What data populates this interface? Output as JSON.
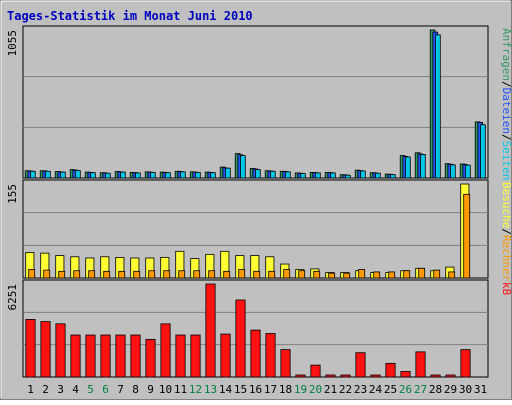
{
  "title": "Tages-Statistik im Monat Juni 2010",
  "colors": {
    "anfragen": "#339966",
    "dateien": "#2255ff",
    "seiten": "#00c8e8",
    "besuche": "#ffff33",
    "rechner": "#ff9900",
    "kb": "#ff1111",
    "weekend_label": "#008040",
    "weekday_label": "#000000",
    "plot_bg": "#c0c0c0",
    "frame_title": "#0000c0"
  },
  "legend_top": [
    {
      "text": "Anfragen",
      "color": "#339966"
    },
    {
      "text": "/",
      "color": "#000000"
    },
    {
      "text": "Dateien",
      "color": "#2255ff"
    },
    {
      "text": "/",
      "color": "#000000"
    },
    {
      "text": "Seiten",
      "color": "#00c8e8"
    }
  ],
  "legend_mid": [
    {
      "text": "Besuche",
      "color": "#ffff33"
    },
    {
      "text": "/",
      "color": "#000000"
    },
    {
      "text": "Rechner",
      "color": "#ff9900"
    }
  ],
  "legend_bot": [
    {
      "text": "kB",
      "color": "#ff1111"
    }
  ],
  "chart_data": {
    "type": "bar",
    "title": "Tages-Statistik im Monat Juni 2010",
    "x": [
      1,
      2,
      3,
      4,
      5,
      6,
      7,
      8,
      9,
      10,
      11,
      12,
      13,
      14,
      15,
      16,
      17,
      18,
      19,
      20,
      21,
      22,
      23,
      24,
      25,
      26,
      27,
      28,
      29,
      30,
      31
    ],
    "weekend_days": [
      5,
      6,
      12,
      13,
      19,
      20,
      26,
      27
    ],
    "panels": [
      {
        "name": "top",
        "ymax": 1055,
        "ymax_label": "1055",
        "series": [
          {
            "name": "Anfragen",
            "values": [
              52,
              52,
              46,
              60,
              42,
              38,
              46,
              40,
              44,
              42,
              48,
              44,
              42,
              78,
              174,
              68,
              52,
              48,
              36,
              40,
              40,
              24,
              56,
              38,
              28,
              160,
              180,
              1055,
              102,
              100,
              400
            ]
          },
          {
            "name": "Dateien",
            "values": [
              50,
              50,
              44,
              56,
              40,
              36,
              44,
              38,
              42,
              40,
              46,
              42,
              40,
              72,
              166,
              64,
              50,
              46,
              34,
              38,
              38,
              22,
              52,
              36,
              26,
              154,
              172,
              1040,
              98,
              96,
              396
            ]
          },
          {
            "name": "Seiten",
            "values": [
              48,
              48,
              42,
              54,
              38,
              34,
              42,
              36,
              40,
              38,
              44,
              40,
              38,
              70,
              160,
              60,
              48,
              44,
              32,
              36,
              36,
              20,
              50,
              34,
              24,
              150,
              168,
              1020,
              94,
              92,
              380
            ]
          }
        ]
      },
      {
        "name": "middle",
        "ymax": 155,
        "ymax_label": "155",
        "series": [
          {
            "name": "Besuche",
            "values": [
              42,
              41,
              37,
              35,
              33,
              35,
              34,
              33,
              33,
              34,
              44,
              32,
              39,
              44,
              37,
              37,
              35,
              23,
              14,
              15,
              9,
              9,
              12,
              9,
              9,
              12,
              16,
              12,
              18,
              155,
              0
            ]
          },
          {
            "name": "Rechner",
            "values": [
              14,
              13,
              11,
              12,
              12,
              11,
              11,
              11,
              12,
              12,
              12,
              12,
              12,
              11,
              14,
              11,
              11,
              14,
              12,
              11,
              8,
              8,
              14,
              10,
              10,
              12,
              16,
              13,
              10,
              138,
              0
            ]
          }
        ]
      },
      {
        "name": "bottom",
        "ymax": 6251,
        "ymax_label": "6251",
        "series": [
          {
            "name": "kB",
            "values": [
              3871,
              3723,
              3574,
              2821,
              2821,
              2821,
              2821,
              2821,
              2530,
              3574,
              2821,
              2821,
              6251,
              2885,
              5176,
              3153,
              2923,
              1841,
              76,
              798,
              38,
              38,
              1634,
              38,
              919,
              371,
              1690,
              38,
              38,
              1841,
              0
            ]
          }
        ]
      }
    ]
  }
}
